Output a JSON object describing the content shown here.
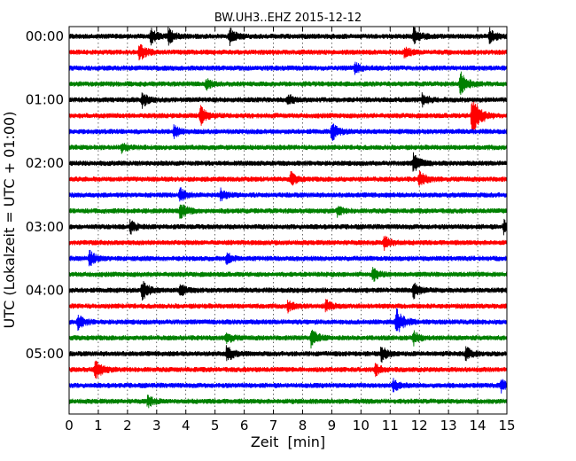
{
  "chart_data": {
    "type": "line",
    "title": "BW.UH3..EHZ 2015-12-12",
    "xlabel": "Zeit  [min]",
    "ylabel": "UTC (Lokalzeit = UTC + 01:00)",
    "xlim": [
      0,
      15
    ],
    "x_ticks": [
      "0",
      "1",
      "2",
      "3",
      "4",
      "5",
      "6",
      "7",
      "8",
      "9",
      "10",
      "11",
      "12",
      "13",
      "14",
      "15"
    ],
    "y_ticks": [
      "00:00",
      "01:00",
      "02:00",
      "03:00",
      "04:00",
      "05:00"
    ],
    "grid": true,
    "trace_minutes": 15,
    "trace_colors": [
      "#000000",
      "#ff0000",
      "#0000ff",
      "#008000"
    ],
    "traces": [
      {
        "utc_start": "00:00",
        "color": "#000000",
        "events": [
          {
            "t": 2.8,
            "amp": 0.45
          },
          {
            "t": 3.4,
            "amp": 0.5
          },
          {
            "t": 5.5,
            "amp": 0.5
          },
          {
            "t": 11.8,
            "amp": 0.55
          },
          {
            "t": 14.4,
            "amp": 0.45
          }
        ]
      },
      {
        "utc_start": "00:15",
        "color": "#ff0000",
        "events": [
          {
            "t": 2.4,
            "amp": 0.55
          },
          {
            "t": 11.5,
            "amp": 0.35
          }
        ]
      },
      {
        "utc_start": "00:30",
        "color": "#0000ff",
        "events": [
          {
            "t": 9.8,
            "amp": 0.35
          }
        ]
      },
      {
        "utc_start": "00:45",
        "color": "#008000",
        "events": [
          {
            "t": 4.7,
            "amp": 0.3
          },
          {
            "t": 13.4,
            "amp": 0.75
          }
        ]
      },
      {
        "utc_start": "01:00",
        "color": "#000000",
        "events": [
          {
            "t": 2.5,
            "amp": 0.45
          },
          {
            "t": 7.5,
            "amp": 0.35
          },
          {
            "t": 12.1,
            "amp": 0.4
          }
        ]
      },
      {
        "utc_start": "01:15",
        "color": "#ff0000",
        "events": [
          {
            "t": 4.5,
            "amp": 0.55
          },
          {
            "t": 13.8,
            "amp": 1.2
          }
        ]
      },
      {
        "utc_start": "01:30",
        "color": "#0000ff",
        "events": [
          {
            "t": 3.6,
            "amp": 0.4
          },
          {
            "t": 9.0,
            "amp": 0.55
          }
        ]
      },
      {
        "utc_start": "01:45",
        "color": "#008000",
        "events": [
          {
            "t": 1.8,
            "amp": 0.3
          }
        ]
      },
      {
        "utc_start": "02:00",
        "color": "#000000",
        "events": [
          {
            "t": 11.8,
            "amp": 0.6
          }
        ]
      },
      {
        "utc_start": "02:15",
        "color": "#ff0000",
        "events": [
          {
            "t": 7.6,
            "amp": 0.4
          },
          {
            "t": 12.0,
            "amp": 0.5
          }
        ]
      },
      {
        "utc_start": "02:30",
        "color": "#0000ff",
        "events": [
          {
            "t": 3.8,
            "amp": 0.4
          },
          {
            "t": 5.2,
            "amp": 0.35
          }
        ]
      },
      {
        "utc_start": "02:45",
        "color": "#008000",
        "events": [
          {
            "t": 3.8,
            "amp": 0.55
          },
          {
            "t": 9.2,
            "amp": 0.3
          }
        ]
      },
      {
        "utc_start": "03:00",
        "color": "#000000",
        "events": [
          {
            "t": 2.1,
            "amp": 0.4
          },
          {
            "t": 14.9,
            "amp": 0.45
          }
        ]
      },
      {
        "utc_start": "03:15",
        "color": "#ff0000",
        "events": [
          {
            "t": 10.8,
            "amp": 0.45
          }
        ]
      },
      {
        "utc_start": "03:30",
        "color": "#0000ff",
        "events": [
          {
            "t": 0.7,
            "amp": 0.45
          },
          {
            "t": 5.4,
            "amp": 0.35
          }
        ]
      },
      {
        "utc_start": "03:45",
        "color": "#008000",
        "events": [
          {
            "t": 10.4,
            "amp": 0.45
          }
        ]
      },
      {
        "utc_start": "04:00",
        "color": "#000000",
        "events": [
          {
            "t": 2.5,
            "amp": 0.6
          },
          {
            "t": 3.8,
            "amp": 0.35
          },
          {
            "t": 11.8,
            "amp": 0.45
          }
        ]
      },
      {
        "utc_start": "04:15",
        "color": "#ff0000",
        "events": [
          {
            "t": 7.5,
            "amp": 0.35
          },
          {
            "t": 8.8,
            "amp": 0.35
          }
        ]
      },
      {
        "utc_start": "04:30",
        "color": "#0000ff",
        "events": [
          {
            "t": 0.3,
            "amp": 0.45
          },
          {
            "t": 11.2,
            "amp": 0.85
          }
        ]
      },
      {
        "utc_start": "04:45",
        "color": "#008000",
        "events": [
          {
            "t": 5.4,
            "amp": 0.35
          },
          {
            "t": 8.3,
            "amp": 0.55
          },
          {
            "t": 11.8,
            "amp": 0.4
          }
        ]
      },
      {
        "utc_start": "05:00",
        "color": "#000000",
        "events": [
          {
            "t": 5.4,
            "amp": 0.5
          },
          {
            "t": 10.7,
            "amp": 0.45
          },
          {
            "t": 13.6,
            "amp": 0.4
          }
        ]
      },
      {
        "utc_start": "05:15",
        "color": "#ff0000",
        "events": [
          {
            "t": 0.9,
            "amp": 0.6
          },
          {
            "t": 10.5,
            "amp": 0.35
          }
        ]
      },
      {
        "utc_start": "05:30",
        "color": "#0000ff",
        "events": [
          {
            "t": 11.1,
            "amp": 0.4
          },
          {
            "t": 14.8,
            "amp": 0.4
          }
        ]
      },
      {
        "utc_start": "05:45",
        "color": "#008000",
        "events": [
          {
            "t": 2.7,
            "amp": 0.35
          }
        ]
      }
    ]
  }
}
